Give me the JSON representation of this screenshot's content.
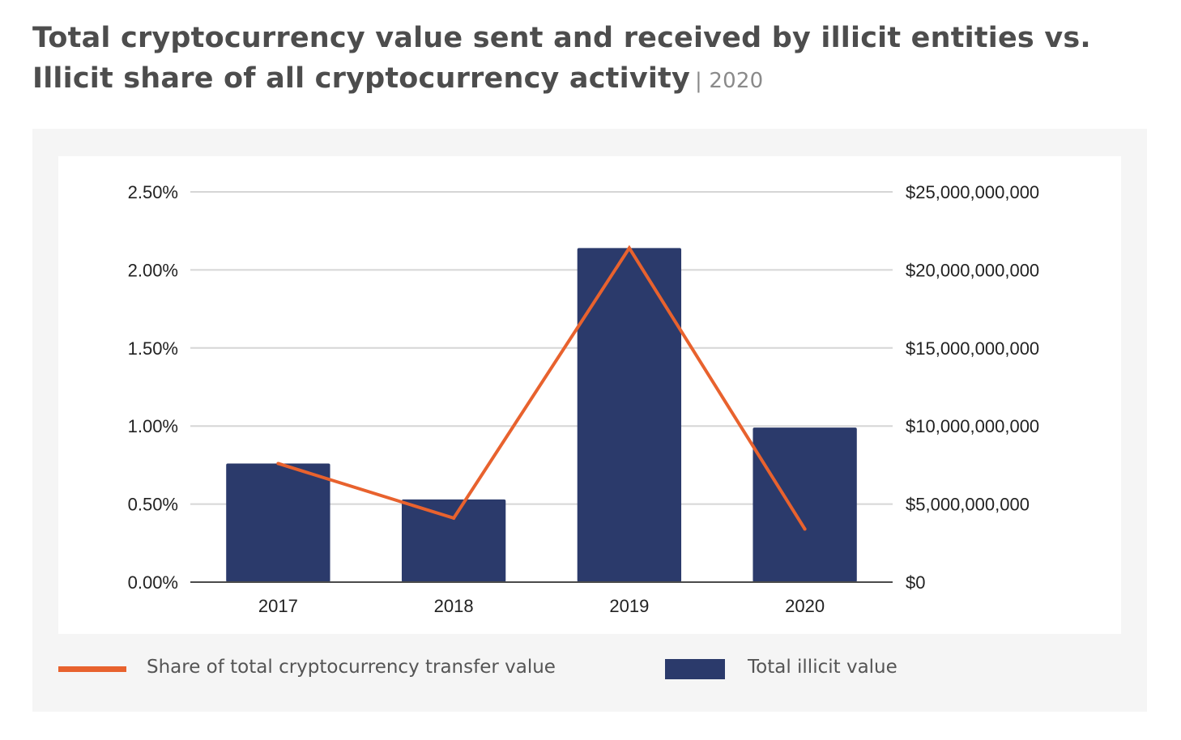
{
  "header": {
    "title_line1": "Total cryptocurrency value sent and received by illicit entities vs.",
    "title_line2": "Illicit share of all cryptocurrency activity",
    "subtitle": "| 2020"
  },
  "colors": {
    "bar": "#2b3a6b",
    "line": "#e8622e",
    "grid": "#d6d6d6",
    "axis": "#4a4a4a",
    "panel_background": "#f5f5f5"
  },
  "chart_data": {
    "type": "bar",
    "categories": [
      "2017",
      "2018",
      "2019",
      "2020"
    ],
    "series": [
      {
        "name": "Total illicit value",
        "type": "bar",
        "axis": "right",
        "values": [
          7600000000,
          5300000000,
          21400000000,
          9900000000
        ]
      },
      {
        "name": "Share of total cryptocurrency transfer value",
        "type": "line",
        "axis": "left",
        "values": [
          0.76,
          0.41,
          2.14,
          0.34
        ]
      }
    ],
    "y_left": {
      "ticks": [
        0,
        0.5,
        1,
        1.5,
        2,
        2.5
      ],
      "tick_labels": [
        "0.00%",
        "0.50%",
        "1.00%",
        "1.50%",
        "2.00%",
        "2.50%"
      ],
      "ylim": [
        0,
        2.5
      ]
    },
    "y_right": {
      "ticks": [
        0,
        5000000000,
        10000000000,
        15000000000,
        20000000000,
        25000000000
      ],
      "tick_labels": [
        "$0",
        "$5,000,000,000",
        "$10,000,000,000",
        "$15,000,000,000",
        "$20,000,000,000",
        "$25,000,000,000"
      ],
      "ylim": [
        0,
        25000000000
      ]
    },
    "grid": true,
    "legend": {
      "position": "bottom",
      "entries": [
        "Share of total cryptocurrency transfer value",
        "Total illicit value"
      ]
    }
  }
}
